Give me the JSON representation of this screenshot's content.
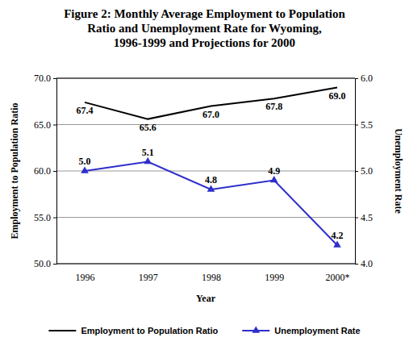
{
  "chart_data": {
    "type": "line",
    "title": "Figure 2: Monthly Average Employment to Population Ratio and Unemployment Rate for Wyoming, 1996-1999 and Projections for 2000",
    "x_label": "Year",
    "y_label": "Employment to Population Ratio",
    "y2_label": "Unemployment Rate",
    "categories": [
      "1996",
      "1997",
      "1998",
      "1999",
      "2000*"
    ],
    "series": [
      {
        "name": "Employment to Population Ratio",
        "color": "#000000",
        "marker": "none",
        "line_style": "solid",
        "values": [
          67.4,
          65.6,
          67.0,
          67.8,
          69.0
        ],
        "value_labels": [
          "67.4",
          "65.6",
          "67.0",
          "67.8",
          "69.0"
        ]
      },
      {
        "name": "Unemployment Rate",
        "color": "#2e2ecc",
        "marker": "triangle",
        "line_style": "solid",
        "axis": "y2",
        "values": [
          5.0,
          5.1,
          4.8,
          4.9,
          4.2
        ],
        "value_labels": [
          "5.0",
          "5.1",
          "4.8",
          "4.9",
          "4.2"
        ]
      }
    ],
    "ylim": [
      50,
      70
    ],
    "yticks": [
      {
        "value": 50,
        "label": "50.0"
      },
      {
        "value": 55,
        "label": "55.0"
      },
      {
        "value": 60,
        "label": "60.0"
      },
      {
        "value": 65,
        "label": "65.0"
      },
      {
        "value": 70,
        "label": "70.0"
      }
    ],
    "y2lim": [
      4,
      6
    ],
    "y2ticks": [
      {
        "value": 4,
        "label": "4.0"
      },
      {
        "value": 4.5,
        "label": "4.5"
      },
      {
        "value": 5,
        "label": "5.0"
      },
      {
        "value": 5.5,
        "label": "5.5"
      },
      {
        "value": 6,
        "label": "6.0"
      }
    ],
    "grid": true,
    "legend": "bottom",
    "data_labels": true
  }
}
